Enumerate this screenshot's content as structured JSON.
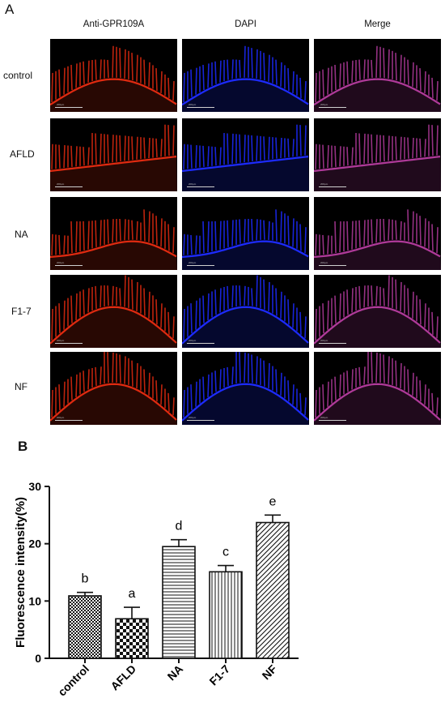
{
  "figure": {
    "panel_a_label": "A",
    "panel_b_label": "B",
    "column_headers": [
      "Anti-GPR109A",
      "DAPI",
      "Merge"
    ],
    "row_labels": [
      "control",
      "AFLD",
      "NA",
      "F1-7",
      "NF"
    ],
    "scale_bar_text": "200μm",
    "channel_colors": {
      "gpr109a": "#e02a10",
      "dapi": "#1d2bff",
      "merge": "#b03a9a"
    }
  },
  "chart_data": {
    "type": "bar",
    "categories": [
      "control",
      "AFLD",
      "NA",
      "F1-7",
      "NF"
    ],
    "values": [
      10.9,
      6.9,
      19.5,
      15.1,
      23.7
    ],
    "errors": [
      0.6,
      2.0,
      1.2,
      1.1,
      1.3
    ],
    "significance_letters": [
      "b",
      "a",
      "d",
      "c",
      "e"
    ],
    "patterns": [
      "checker-small",
      "checker-large",
      "horizontal",
      "vertical",
      "diagonal"
    ],
    "ylabel": "Fluorescence intensity(%)",
    "xlabel": "",
    "ylim": [
      0,
      30
    ],
    "yticks": [
      0,
      10,
      20,
      30
    ],
    "grid": false
  }
}
